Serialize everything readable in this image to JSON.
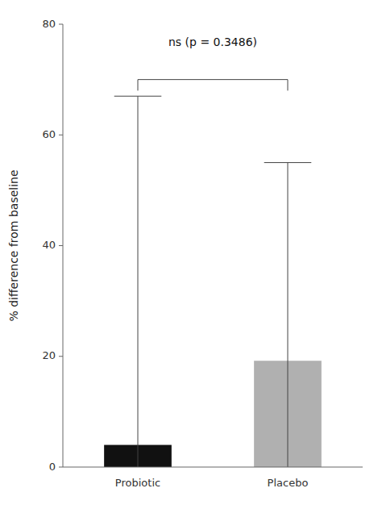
{
  "chart_data": {
    "type": "bar",
    "categories": [
      "Probiotic",
      "Placebo"
    ],
    "values": [
      4.0,
      19.2
    ],
    "colors": [
      "#111111",
      "#b0b0b0"
    ],
    "error_upper": [
      67.0,
      55.0
    ],
    "error_lower": [
      0.0,
      0.0
    ],
    "ylabel": "% difference from baseline",
    "ylim": [
      0,
      80
    ],
    "yticks": [
      0,
      20,
      40,
      60,
      80
    ],
    "grid": false,
    "annotations": [
      {
        "text": "ns (p = 0.3486)",
        "y": 76,
        "bracket_y": 70,
        "bracket_drop": 2.0
      }
    ]
  }
}
